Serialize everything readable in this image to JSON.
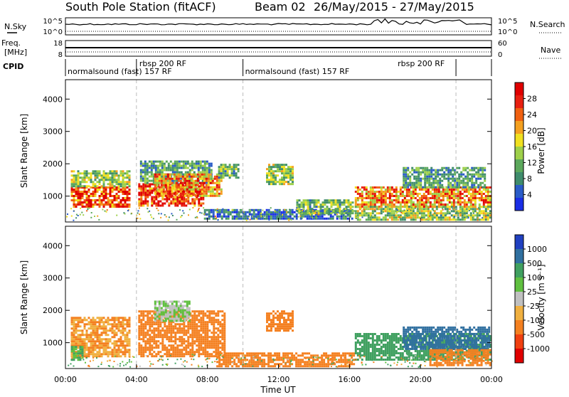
{
  "header": {
    "station": "South Pole Station (fitACF)",
    "beam": "Beam 02",
    "date_range": "26/May/2015 - 27/May/2015"
  },
  "noise_panel": {
    "left_label": "N.Sky",
    "left_ticks": [
      "10^5",
      "10^0"
    ],
    "right_label": "N.Search",
    "right_ticks": [
      "10^5",
      "10^0"
    ]
  },
  "freq_panel": {
    "left_label_1": "Freq.",
    "left_label_2": "[MHz]",
    "left_ticks": [
      "18",
      "8"
    ],
    "right_label": "Nave",
    "right_ticks": [
      "60",
      "0"
    ]
  },
  "cpid_panel": {
    "label": "CPID",
    "segments": [
      {
        "label": "normalsound (fast) 157 RF",
        "start_h": 0,
        "end_h": 4
      },
      {
        "label": "rbsp 200 RF",
        "start_h": 4,
        "end_h": 10
      },
      {
        "label": "normalsound (fast) 157 RF",
        "start_h": 10,
        "end_h": 22
      },
      {
        "label": "rbsp 200 RF",
        "start_h": 22,
        "end_h": 24
      }
    ]
  },
  "colors": {
    "power_scale": [
      "#1a2ee6",
      "#2a5cc8",
      "#3f8c6c",
      "#5ca85c",
      "#9ed04a",
      "#f0e020",
      "#f4a020",
      "#f06010",
      "#e82010",
      "#e00000"
    ],
    "velocity_scale": [
      "#e00000",
      "#f04010",
      "#f48020",
      "#f0b040",
      "#c0c0c0",
      "#60c040",
      "#40a060",
      "#3070a0",
      "#2040c0"
    ]
  },
  "chart_data": [
    {
      "type": "heatmap",
      "name": "power",
      "ylabel": "Slant Range [km]",
      "yticks": [
        "1000",
        "2000",
        "3000",
        "4000"
      ],
      "ylim": [
        200,
        4600
      ],
      "xlim": [
        0,
        24
      ],
      "colorbar": {
        "label": "Power [dB]",
        "ticks": [
          "4",
          "8",
          "12",
          "16",
          "20",
          "24",
          "28"
        ],
        "range": [
          0,
          32
        ]
      },
      "mode_boundaries_h": [
        4,
        10,
        22
      ],
      "regions": [
        {
          "t0": 0.3,
          "t1": 3.6,
          "r0": 700,
          "r1": 1300,
          "value": 26
        },
        {
          "t0": 0.3,
          "t1": 3.6,
          "r0": 1300,
          "r1": 1800,
          "value": 14
        },
        {
          "t0": 4.1,
          "t1": 7.8,
          "r0": 700,
          "r1": 1400,
          "value": 28
        },
        {
          "t0": 4.2,
          "t1": 8.2,
          "r0": 1400,
          "r1": 2100,
          "value": 10
        },
        {
          "t0": 5.0,
          "t1": 8.8,
          "r0": 1000,
          "r1": 1700,
          "value": 22
        },
        {
          "t0": 8.6,
          "t1": 9.8,
          "r0": 1600,
          "r1": 2000,
          "value": 12
        },
        {
          "t0": 11.3,
          "t1": 12.8,
          "r0": 1400,
          "r1": 2000,
          "value": 14
        },
        {
          "t0": 7.8,
          "t1": 16.2,
          "r0": 300,
          "r1": 600,
          "value": 6
        },
        {
          "t0": 13.0,
          "t1": 16.2,
          "r0": 450,
          "r1": 900,
          "value": 12
        },
        {
          "t0": 16.3,
          "t1": 23.9,
          "r0": 700,
          "r1": 1300,
          "value": 22
        },
        {
          "t0": 16.3,
          "t1": 23.9,
          "r0": 300,
          "r1": 700,
          "value": 14
        },
        {
          "t0": 19.0,
          "t1": 23.6,
          "r0": 1300,
          "r1": 1900,
          "value": 10
        }
      ]
    },
    {
      "type": "heatmap",
      "name": "velocity",
      "ylabel": "Slant Range [km]",
      "yticks": [
        "1000",
        "2000",
        "3000",
        "4000"
      ],
      "ylim": [
        200,
        4600
      ],
      "xlim": [
        0,
        24
      ],
      "xlabel": "Time UT",
      "xticks": [
        "00:00",
        "04:00",
        "08:00",
        "12:00",
        "16:00",
        "20:00",
        "00:00"
      ],
      "colorbar": {
        "label": "Velocity [m s⁻¹]",
        "ticks": [
          "1000",
          "500",
          "100",
          "25",
          "-25",
          "-100",
          "-500",
          "-1000"
        ]
      },
      "mode_boundaries_h": [
        4,
        10,
        22
      ],
      "regions": [
        {
          "t0": 0.3,
          "t1": 3.6,
          "r0": 600,
          "r1": 1800,
          "value": -100
        },
        {
          "t0": 0.3,
          "t1": 1.0,
          "r0": 500,
          "r1": 900,
          "value": 100
        },
        {
          "t0": 4.1,
          "t1": 9.0,
          "r0": 600,
          "r1": 2000,
          "value": -200
        },
        {
          "t0": 5.0,
          "t1": 7.0,
          "r0": 1700,
          "r1": 2300,
          "value": 25
        },
        {
          "t0": 11.3,
          "t1": 12.8,
          "r0": 1400,
          "r1": 2000,
          "value": -300
        },
        {
          "t0": 8.5,
          "t1": 16.2,
          "r0": 300,
          "r1": 700,
          "value": -150
        },
        {
          "t0": 16.3,
          "t1": 23.9,
          "r0": 500,
          "r1": 1300,
          "value": 200
        },
        {
          "t0": 19.0,
          "t1": 23.9,
          "r0": 800,
          "r1": 1500,
          "value": 700
        },
        {
          "t0": 20.5,
          "t1": 23.9,
          "r0": 300,
          "r1": 800,
          "value": -200
        }
      ]
    }
  ]
}
